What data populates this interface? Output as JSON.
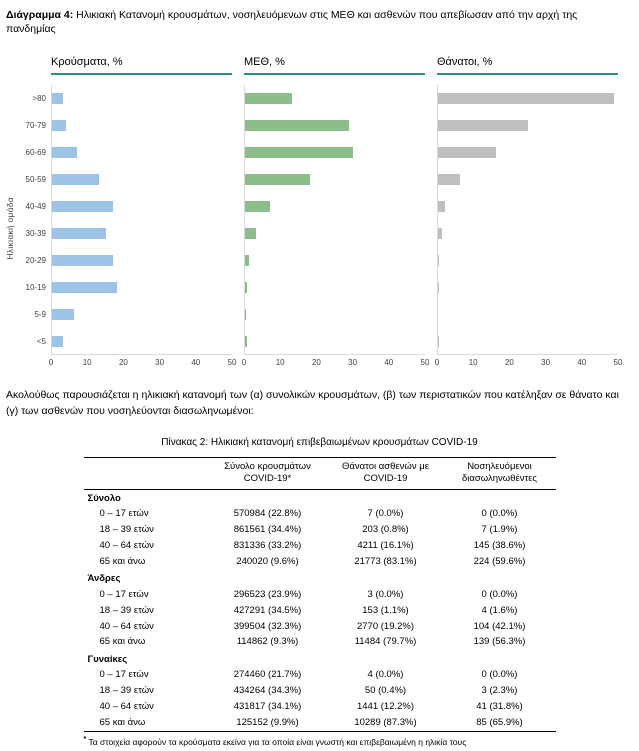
{
  "doc": {
    "figure_label": "Διάγραμμα 4:",
    "figure_title": " Ηλικιακή Κατανομή κρουσμάτων, νοσηλευόμενων στις ΜΕΘ και ασθενών που απεβίωσαν από την αρχή της πανδημίας",
    "paragraph": "Ακολούθως παρουσιάζεται η ηλικιακή κατανομή των (α) συνολικών κρουσμάτων, (β) των περιστατικών που κατέληξαν σε θάνατο και (γ) των ασθενών που νοσηλεύονται διασωληνωμένοι:",
    "table_title": "Πίνακας 2: Ηλικιακή κατανομή επιβεβαιωμένων κρουσμάτων COVID-19",
    "footnote_marker": "*",
    "footnote": " Τα στοιχεία αφορούν τα κρούσματα εκείνα για τα οποία είναι γνωστή και επιβεβαιωμένη η ηλικία τους"
  },
  "chart_data": {
    "type": "bar",
    "orientation": "horizontal",
    "ylabel": "Ηλικιακή ομάδα",
    "categories": [
      ">80",
      "70-79",
      "60-69",
      "50-59",
      "40-49",
      "30-39",
      "20-29",
      "10-19",
      "5-9",
      "<5"
    ],
    "x_ticks": [
      0,
      10,
      20,
      30,
      40,
      50
    ],
    "xlim": [
      0,
      50
    ],
    "grid": false,
    "legend": "none",
    "header_underline_color": "#2E8B8B",
    "series": [
      {
        "name": "Κρούσματα, %",
        "color": "#9DC3E6",
        "values": [
          3,
          4,
          7,
          13,
          17,
          15,
          17,
          18,
          6,
          3
        ]
      },
      {
        "name": "ΜΕΘ, %",
        "color": "#8CBE8C",
        "values": [
          13,
          29,
          30,
          18,
          7,
          3,
          1,
          0.5,
          0.3,
          0.5
        ]
      },
      {
        "name": "Θάνατοι, %",
        "color": "#BFBFBF",
        "values": [
          49,
          25,
          16,
          6,
          2,
          1,
          0.3,
          0.1,
          0,
          0.2
        ]
      }
    ]
  },
  "table": {
    "columns": [
      "",
      "Σύνολο κρουσμάτων COVID-19*",
      "Θάνατοι ασθενών με COVID-19",
      "Νοσηλευόμενοι διασωληνωθέντες"
    ],
    "sections": [
      {
        "label": "Σύνολο",
        "rows": [
          {
            "label": "0 – 17 ετών",
            "cells": [
              "570984 (22.8%)",
              "7 (0.0%)",
              "0 (0.0%)"
            ]
          },
          {
            "label": "18 – 39 ετών",
            "cells": [
              "861561 (34.4%)",
              "203 (0.8%)",
              "7 (1.9%)"
            ]
          },
          {
            "label": "40 – 64 ετών",
            "cells": [
              "831336 (33.2%)",
              "4211 (16.1%)",
              "145 (38.6%)"
            ]
          },
          {
            "label": "65 και άνω",
            "cells": [
              "240020 (9.6%)",
              "21773 (83.1%)",
              "224 (59.6%)"
            ]
          }
        ]
      },
      {
        "label": "Άνδρες",
        "rows": [
          {
            "label": "0 – 17 ετών",
            "cells": [
              "296523 (23.9%)",
              "3 (0.0%)",
              "0 (0.0%)"
            ]
          },
          {
            "label": "18 – 39 ετών",
            "cells": [
              "427291 (34.5%)",
              "153 (1.1%)",
              "4 (1.6%)"
            ]
          },
          {
            "label": "40 – 64 ετών",
            "cells": [
              "399504 (32.3%)",
              "2770 (19.2%)",
              "104 (42.1%)"
            ]
          },
          {
            "label": "65 και άνω",
            "cells": [
              "114862 (9.3%)",
              "11484 (79.7%)",
              "139 (56.3%)"
            ]
          }
        ]
      },
      {
        "label": "Γυναίκες",
        "rows": [
          {
            "label": "0 – 17 ετών",
            "cells": [
              "274460 (21.7%)",
              "4 (0.0%)",
              "0 (0.0%)"
            ]
          },
          {
            "label": "18 – 39 ετών",
            "cells": [
              "434264 (34.3%)",
              "50 (0.4%)",
              "3 (2.3%)"
            ]
          },
          {
            "label": "40 – 64 ετών",
            "cells": [
              "431817 (34.1%)",
              "1441 (12.2%)",
              "41 (31.8%)"
            ]
          },
          {
            "label": "65 και άνω",
            "cells": [
              "125152 (9.9%)",
              "10289 (87.3%)",
              "85 (65.9%)"
            ]
          }
        ]
      }
    ]
  }
}
